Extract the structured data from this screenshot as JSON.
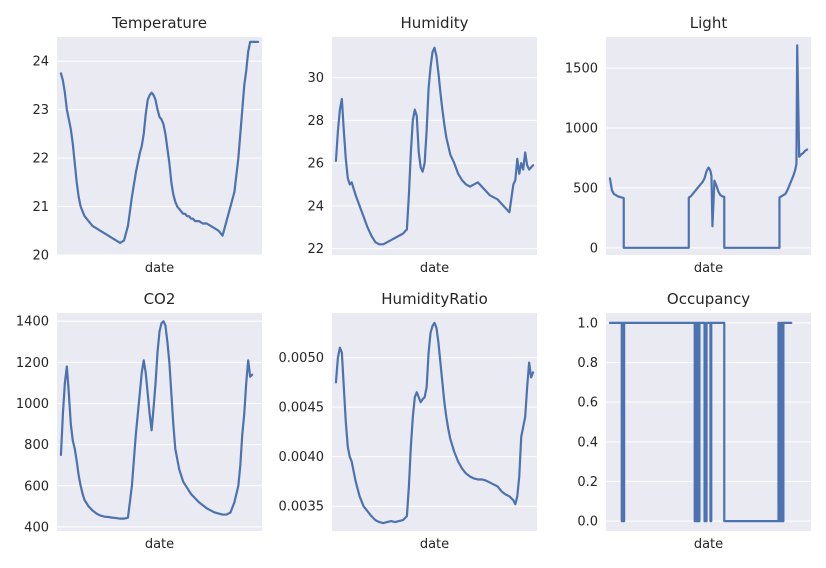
{
  "figure": {
    "background": "#ffffff",
    "plot_background": "#EAEAF2",
    "grid_color": "#ffffff",
    "line_color": "#4C72B0"
  },
  "chart_data": [
    {
      "type": "line",
      "title": "Temperature",
      "xlabel": "date",
      "ylabel": "",
      "ylim": [
        20,
        24.5
      ],
      "yticks": [
        20,
        21,
        22,
        23,
        24
      ],
      "ytick_labels": [
        "20",
        "21",
        "22",
        "23",
        "24"
      ],
      "grid": true,
      "x": [
        0,
        1,
        2,
        3,
        4,
        5,
        6,
        7,
        8,
        9,
        10,
        11,
        12,
        14,
        16,
        18,
        20,
        22,
        24,
        26,
        28,
        30,
        32,
        34,
        36,
        38,
        40,
        41,
        42,
        43,
        44,
        45,
        46,
        47,
        48,
        49,
        50,
        51,
        52,
        53,
        54,
        55,
        56,
        57,
        58,
        59,
        60,
        61,
        62,
        63,
        64,
        65,
        66,
        67,
        68,
        69,
        70,
        72,
        74,
        76,
        78,
        80,
        82,
        84,
        86,
        88,
        90,
        91,
        92,
        93,
        94,
        95,
        96,
        97,
        98,
        99,
        100
      ],
      "series": [
        {
          "values": [
            23.75,
            23.6,
            23.35,
            23.0,
            22.8,
            22.6,
            22.3,
            21.9,
            21.5,
            21.2,
            21.0,
            20.9,
            20.8,
            20.7,
            20.6,
            20.55,
            20.5,
            20.45,
            20.4,
            20.35,
            20.3,
            20.25,
            20.3,
            20.6,
            21.2,
            21.7,
            22.1,
            22.25,
            22.5,
            22.9,
            23.2,
            23.3,
            23.35,
            23.3,
            23.2,
            23.0,
            22.85,
            22.8,
            22.7,
            22.5,
            22.2,
            21.9,
            21.5,
            21.25,
            21.1,
            21.0,
            20.95,
            20.9,
            20.85,
            20.85,
            20.8,
            20.8,
            20.75,
            20.75,
            20.7,
            20.7,
            20.7,
            20.65,
            20.65,
            20.6,
            20.55,
            20.5,
            20.4,
            20.7,
            21.0,
            21.3,
            22.0,
            22.5,
            23.0,
            23.5,
            23.8,
            24.2,
            24.4,
            24.4,
            24.4,
            24.4,
            24.4
          ]
        }
      ]
    },
    {
      "type": "line",
      "title": "Humidity",
      "xlabel": "date",
      "ylabel": "",
      "ylim": [
        21.7,
        31.9
      ],
      "yticks": [
        22,
        24,
        26,
        28,
        30
      ],
      "ytick_labels": [
        "22",
        "24",
        "26",
        "28",
        "30"
      ],
      "grid": true,
      "x": [
        0,
        1,
        2,
        3,
        4,
        5,
        6,
        7,
        8,
        9,
        10,
        12,
        14,
        16,
        18,
        20,
        22,
        24,
        26,
        28,
        30,
        32,
        34,
        36,
        37,
        38,
        39,
        40,
        41,
        42,
        43,
        44,
        45,
        46,
        47,
        48,
        49,
        50,
        51,
        52,
        53,
        54,
        55,
        56,
        57,
        58,
        60,
        62,
        64,
        66,
        68,
        70,
        72,
        74,
        76,
        78,
        80,
        82,
        84,
        86,
        88,
        90,
        91,
        92,
        93,
        94,
        95,
        96,
        97,
        98,
        99,
        100
      ],
      "series": [
        {
          "values": [
            26.1,
            27.5,
            28.5,
            29.0,
            27.5,
            26.2,
            25.3,
            25.0,
            25.1,
            24.8,
            24.5,
            24.0,
            23.5,
            23.0,
            22.6,
            22.3,
            22.2,
            22.2,
            22.3,
            22.4,
            22.5,
            22.6,
            22.7,
            22.9,
            24.5,
            26.5,
            28.0,
            28.5,
            28.2,
            26.5,
            25.8,
            25.6,
            26.0,
            27.5,
            29.5,
            30.5,
            31.2,
            31.4,
            31.0,
            30.2,
            29.3,
            28.5,
            27.8,
            27.2,
            26.8,
            26.4,
            26.0,
            25.5,
            25.2,
            25.0,
            24.9,
            25.0,
            25.1,
            24.9,
            24.7,
            24.5,
            24.4,
            24.3,
            24.1,
            23.9,
            23.7,
            25.0,
            25.2,
            26.2,
            25.5,
            26.0,
            25.7,
            26.5,
            25.9,
            25.7,
            25.8,
            25.9
          ]
        }
      ]
    },
    {
      "type": "line",
      "title": "Light",
      "xlabel": "date",
      "ylabel": "",
      "ylim": [
        -60,
        1760
      ],
      "yticks": [
        0,
        500,
        1000,
        1500
      ],
      "ytick_labels": [
        "0",
        "500",
        "1000",
        "1500"
      ],
      "grid": true,
      "x": [
        0,
        1,
        2,
        3,
        4,
        5,
        6,
        7,
        7,
        15,
        25,
        35,
        40,
        40,
        41,
        42,
        43,
        44,
        45,
        46,
        47,
        48,
        49,
        50,
        50.5,
        51,
        51.5,
        52,
        53,
        54,
        55,
        56,
        57,
        58,
        58,
        65,
        75,
        85,
        86,
        86,
        87,
        88,
        89,
        90,
        91,
        92,
        93,
        94,
        94.6,
        95,
        96,
        97,
        98,
        99,
        100
      ],
      "series": [
        {
          "values": [
            580,
            480,
            450,
            440,
            430,
            425,
            420,
            415,
            0,
            0,
            0,
            0,
            0,
            420,
            430,
            450,
            470,
            490,
            510,
            530,
            550,
            580,
            640,
            670,
            660,
            640,
            600,
            180,
            560,
            520,
            470,
            440,
            430,
            425,
            0,
            0,
            0,
            0,
            0,
            420,
            430,
            440,
            450,
            480,
            520,
            560,
            600,
            650,
            700,
            1690,
            760,
            780,
            790,
            810,
            820
          ]
        }
      ]
    },
    {
      "type": "line",
      "title": "CO2",
      "xlabel": "date",
      "ylabel": "",
      "ylim": [
        380,
        1440
      ],
      "yticks": [
        400,
        600,
        800,
        1000,
        1200,
        1400
      ],
      "ytick_labels": [
        "400",
        "600",
        "800",
        "1000",
        "1200",
        "1400"
      ],
      "grid": true,
      "x": [
        0,
        1,
        2,
        3,
        4,
        5,
        6,
        7,
        8,
        9,
        10,
        11,
        12,
        14,
        16,
        18,
        20,
        22,
        24,
        26,
        28,
        30,
        32,
        34,
        36,
        38,
        40,
        41,
        42,
        43,
        44,
        45,
        46,
        47,
        48,
        49,
        50,
        51,
        52,
        53,
        54,
        55,
        56,
        57,
        58,
        60,
        62,
        64,
        66,
        68,
        70,
        72,
        74,
        76,
        78,
        80,
        82,
        84,
        86,
        88,
        90,
        91,
        92,
        93,
        94,
        95,
        96,
        97
      ],
      "series": [
        {
          "values": [
            750,
            950,
            1100,
            1180,
            1050,
            900,
            820,
            780,
            720,
            650,
            600,
            560,
            530,
            500,
            480,
            465,
            455,
            450,
            448,
            445,
            443,
            440,
            440,
            445,
            600,
            850,
            1050,
            1150,
            1210,
            1150,
            1050,
            950,
            870,
            980,
            1100,
            1250,
            1350,
            1390,
            1400,
            1380,
            1300,
            1200,
            1050,
            900,
            780,
            680,
            620,
            590,
            560,
            540,
            520,
            505,
            490,
            480,
            470,
            465,
            460,
            460,
            470,
            520,
            600,
            700,
            850,
            950,
            1100,
            1210,
            1130,
            1140
          ]
        }
      ]
    },
    {
      "type": "line",
      "title": "HumidityRatio",
      "xlabel": "date",
      "ylabel": "",
      "ylim": [
        0.00325,
        0.00545
      ],
      "yticks": [
        0.0035,
        0.004,
        0.0045,
        0.005
      ],
      "ytick_labels": [
        "0.0035",
        "0.0040",
        "0.0045",
        "0.0050"
      ],
      "grid": true,
      "x": [
        0,
        1,
        2,
        3,
        4,
        5,
        6,
        7,
        8,
        9,
        10,
        12,
        14,
        16,
        18,
        20,
        22,
        24,
        26,
        28,
        30,
        32,
        34,
        36,
        37,
        38,
        39,
        40,
        41,
        42,
        43,
        44,
        45,
        46,
        47,
        48,
        49,
        50,
        51,
        52,
        53,
        54,
        55,
        56,
        57,
        58,
        60,
        62,
        64,
        66,
        68,
        70,
        72,
        74,
        76,
        78,
        80,
        82,
        84,
        86,
        88,
        90,
        91,
        92,
        93,
        94,
        95,
        96,
        97,
        98,
        99,
        100
      ],
      "series": [
        {
          "values": [
            0.00475,
            0.005,
            0.0051,
            0.00505,
            0.0047,
            0.00435,
            0.0041,
            0.004,
            0.00395,
            0.00385,
            0.00375,
            0.0036,
            0.0035,
            0.00345,
            0.0034,
            0.00336,
            0.00334,
            0.00333,
            0.00334,
            0.00335,
            0.00334,
            0.00335,
            0.00336,
            0.0034,
            0.0037,
            0.0041,
            0.0044,
            0.0046,
            0.00465,
            0.0046,
            0.00455,
            0.00458,
            0.0046,
            0.0047,
            0.00505,
            0.00525,
            0.00532,
            0.00535,
            0.0053,
            0.00515,
            0.00495,
            0.00475,
            0.00455,
            0.0044,
            0.00428,
            0.00418,
            0.00405,
            0.00395,
            0.00388,
            0.00383,
            0.0038,
            0.00378,
            0.00377,
            0.00377,
            0.00376,
            0.00374,
            0.00372,
            0.0037,
            0.00365,
            0.00362,
            0.0036,
            0.00356,
            0.00352,
            0.0036,
            0.0038,
            0.0042,
            0.0043,
            0.0044,
            0.0047,
            0.00495,
            0.0048,
            0.00485
          ]
        }
      ]
    },
    {
      "type": "line",
      "title": "Occupancy",
      "xlabel": "date",
      "ylabel": "",
      "ylim": [
        -0.05,
        1.05
      ],
      "yticks": [
        0.0,
        0.2,
        0.4,
        0.6,
        0.8,
        1.0
      ],
      "ytick_labels": [
        "0.0",
        "0.2",
        "0.4",
        "0.6",
        "0.8",
        "1.0"
      ],
      "grid": true,
      "x": [
        0,
        6,
        6,
        6.4,
        6.4,
        6.8,
        6.8,
        7.2,
        7.2,
        35,
        35,
        43,
        43,
        43.4,
        43.4,
        44,
        44,
        44.3,
        44.3,
        45,
        45,
        45.4,
        45.4,
        48,
        48,
        49,
        49,
        51,
        51,
        51.4,
        51.4,
        58,
        58,
        85.5,
        85.5,
        86,
        86,
        87,
        87,
        87.4,
        87.4,
        88,
        88,
        88.3,
        88.3,
        92
      ],
      "series": [
        {
          "values": [
            1,
            1,
            0,
            0,
            1,
            1,
            0,
            0,
            1,
            1,
            1,
            1,
            0,
            0,
            1,
            1,
            0,
            0,
            1,
            1,
            0,
            0,
            1,
            1,
            0,
            0,
            1,
            1,
            0,
            0,
            1,
            1,
            0,
            0,
            1,
            1,
            0,
            0,
            1,
            1,
            0,
            0,
            1,
            1,
            1,
            1
          ]
        }
      ]
    }
  ]
}
